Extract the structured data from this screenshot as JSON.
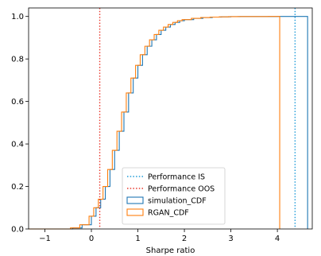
{
  "chart_data": {
    "type": "line",
    "xlabel": "Sharpe ratio",
    "ylabel": "",
    "xlim": [
      -1.35,
      4.75
    ],
    "ylim": [
      0,
      1.04
    ],
    "x_ticks": [
      "−1",
      "0",
      "1",
      "2",
      "3",
      "4"
    ],
    "x_tick_values": [
      -1,
      0,
      1,
      2,
      3,
      4
    ],
    "y_ticks": [
      "0.0",
      "0.2",
      "0.4",
      "0.6",
      "0.8",
      "1.0"
    ],
    "y_tick_values": [
      0,
      0.2,
      0.4,
      0.6,
      0.8,
      1.0
    ],
    "grid": false,
    "legend_position": "lower center",
    "vlines": [
      {
        "name": "Performance IS",
        "x": 4.38,
        "color": "#1f9bd8",
        "style": "dotted"
      },
      {
        "name": "Performance OOS",
        "x": 0.18,
        "color": "#e8372b",
        "style": "dotted"
      }
    ],
    "series": [
      {
        "name": "simulation_CDF",
        "color": "#1f77b4",
        "step": true,
        "x_end": 4.65,
        "x": [
          -0.4,
          -0.2,
          0.0,
          0.1,
          0.2,
          0.3,
          0.4,
          0.5,
          0.6,
          0.7,
          0.8,
          0.9,
          1.0,
          1.1,
          1.2,
          1.3,
          1.4,
          1.5,
          1.6,
          1.7,
          1.8,
          1.9,
          2.0,
          2.2,
          2.4,
          2.6,
          2.8,
          3.0,
          3.2,
          4.0
        ],
        "y": [
          0.005,
          0.02,
          0.06,
          0.1,
          0.14,
          0.2,
          0.28,
          0.37,
          0.46,
          0.55,
          0.64,
          0.71,
          0.77,
          0.82,
          0.86,
          0.89,
          0.915,
          0.935,
          0.95,
          0.962,
          0.972,
          0.98,
          0.985,
          0.991,
          0.995,
          0.997,
          0.998,
          0.999,
          0.9995,
          1.0
        ]
      },
      {
        "name": "RGAN_CDF",
        "color": "#ff7f0e",
        "step": true,
        "x_end": 4.05,
        "x": [
          -0.45,
          -0.25,
          -0.05,
          0.05,
          0.15,
          0.25,
          0.35,
          0.45,
          0.55,
          0.65,
          0.75,
          0.85,
          0.95,
          1.05,
          1.15,
          1.25,
          1.35,
          1.45,
          1.55,
          1.65,
          1.75,
          1.85,
          1.95,
          2.15,
          2.35,
          2.55,
          2.75,
          2.95,
          3.15,
          3.8
        ],
        "y": [
          0.005,
          0.02,
          0.06,
          0.1,
          0.14,
          0.2,
          0.28,
          0.37,
          0.46,
          0.55,
          0.64,
          0.71,
          0.77,
          0.82,
          0.86,
          0.89,
          0.915,
          0.935,
          0.95,
          0.962,
          0.972,
          0.98,
          0.985,
          0.991,
          0.995,
          0.997,
          0.998,
          0.999,
          0.9995,
          1.0
        ]
      }
    ],
    "legend": [
      {
        "label": "Performance IS",
        "kind": "dotted",
        "color": "#1f9bd8"
      },
      {
        "label": "Performance OOS",
        "kind": "dotted",
        "color": "#e8372b"
      },
      {
        "label": "simulation_CDF",
        "kind": "box",
        "color": "#1f77b4"
      },
      {
        "label": "RGAN_CDF",
        "kind": "box",
        "color": "#ff7f0e"
      }
    ]
  }
}
